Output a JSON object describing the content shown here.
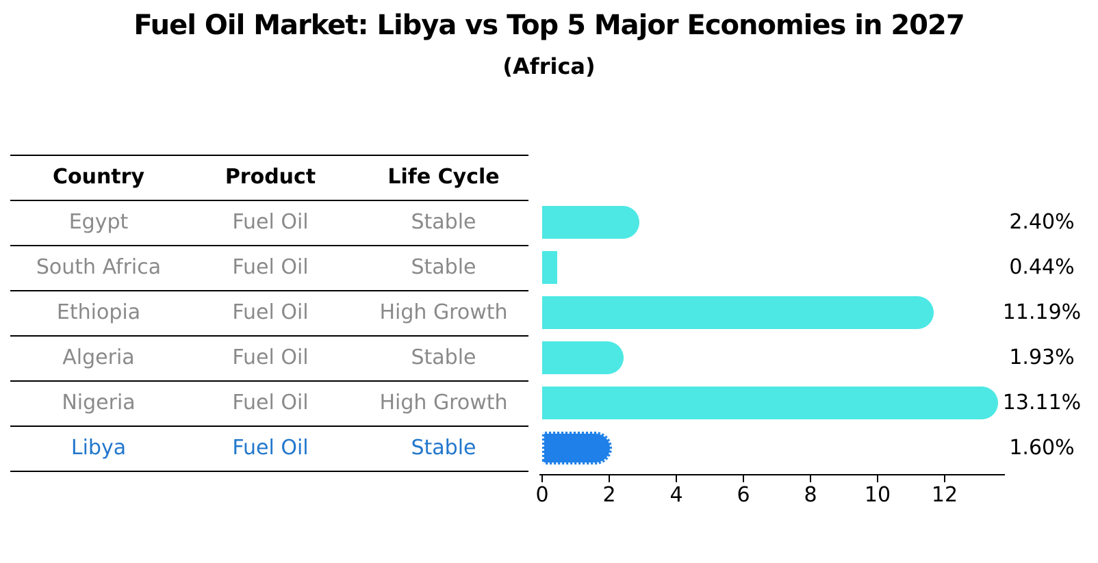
{
  "title": "Fuel Oil Market: Libya vs Top 5 Major Economies in 2027",
  "subtitle": "(Africa)",
  "table": {
    "headers": [
      "Country",
      "Product",
      "Life Cycle"
    ],
    "rows": [
      {
        "country": "Egypt",
        "product": "Fuel Oil",
        "life_cycle": "Stable",
        "highlight": false
      },
      {
        "country": "South Africa",
        "product": "Fuel Oil",
        "life_cycle": "Stable",
        "highlight": false
      },
      {
        "country": "Ethiopia",
        "product": "Fuel Oil",
        "life_cycle": "High Growth",
        "highlight": false
      },
      {
        "country": "Algeria",
        "product": "Fuel Oil",
        "life_cycle": "Stable",
        "highlight": false
      },
      {
        "country": "Nigeria",
        "product": "Fuel Oil",
        "life_cycle": "High Growth",
        "highlight": false
      },
      {
        "country": "Libya",
        "product": "Fuel Oil",
        "life_cycle": "Stable",
        "highlight": true
      }
    ]
  },
  "chart_data": {
    "type": "bar",
    "orientation": "horizontal",
    "title": "Fuel Oil Market: Libya vs Top 5 Major Economies in 2027 (Africa)",
    "categories": [
      "Egypt",
      "South Africa",
      "Ethiopia",
      "Algeria",
      "Nigeria",
      "Libya"
    ],
    "values": [
      2.4,
      0.44,
      11.19,
      1.93,
      13.11,
      1.6
    ],
    "value_labels": [
      "2.40%",
      "0.44%",
      "11.19%",
      "1.93%",
      "13.11%",
      "1.60%"
    ],
    "unit": "%",
    "x_ticks": [
      0,
      2,
      4,
      6,
      8,
      10,
      12
    ],
    "xlim": [
      0,
      13.8
    ],
    "grid": false,
    "legend": false,
    "highlight_index": 5,
    "colors": {
      "bar": "#4DE8E4",
      "highlight_bar": "#1E80E8",
      "highlight_text": "#2277CC",
      "row_text": "#8a8a8a",
      "label_text": "#000000"
    }
  }
}
